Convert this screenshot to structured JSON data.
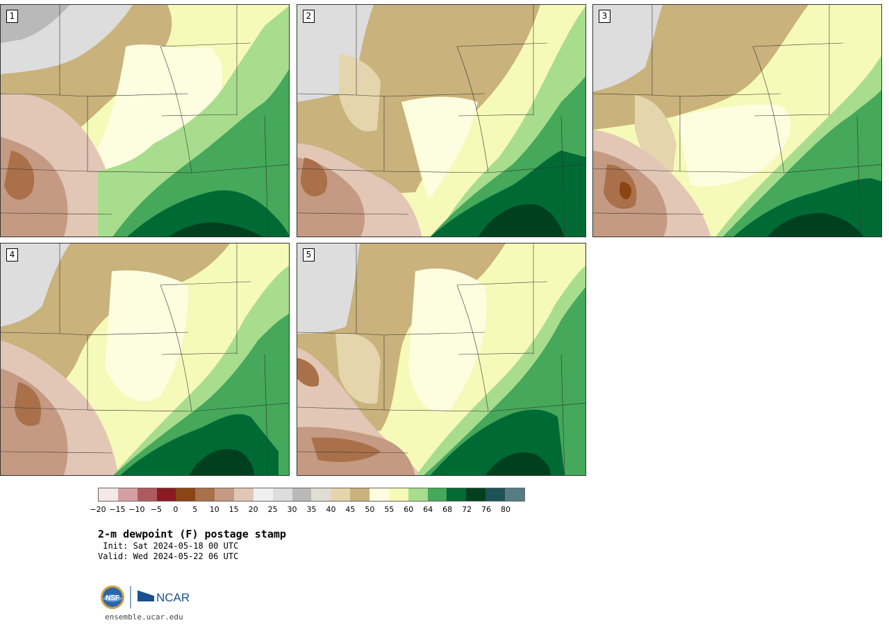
{
  "panels": [
    {
      "label": "1"
    },
    {
      "label": "2"
    },
    {
      "label": "3"
    },
    {
      "label": "4"
    },
    {
      "label": "5"
    }
  ],
  "colorbar": {
    "colors": [
      "#f5e8e8",
      "#d4a0a4",
      "#b05a60",
      "#8b1a22",
      "#8b4513",
      "#a9704a",
      "#c59a82",
      "#e2c7b6",
      "#f0f0f0",
      "#dddddd",
      "#b9b9b9",
      "#e0ded4",
      "#e5d5ad",
      "#c9b27b",
      "#fdfde0",
      "#f6fab8",
      "#a8dd8d",
      "#45a85a",
      "#006a35",
      "#00401f",
      "#1d5256",
      "#567d84"
    ],
    "tick_labels": [
      "−20",
      "−15",
      "−10",
      "−5",
      "0",
      "5",
      "10",
      "15",
      "20",
      "25",
      "30",
      "35",
      "40",
      "45",
      "50",
      "55",
      "60",
      "64",
      "68",
      "72",
      "76",
      "80"
    ]
  },
  "title": "2-m dewpoint (F) postage stamp",
  "init": " Init: Sat 2024-05-18 00 UTC",
  "valid": "Valid: Wed 2024-05-22 06 UTC",
  "logos": {
    "nsf": "NSF",
    "ncar": "NCAR"
  },
  "website": "ensemble.ucar.edu"
}
